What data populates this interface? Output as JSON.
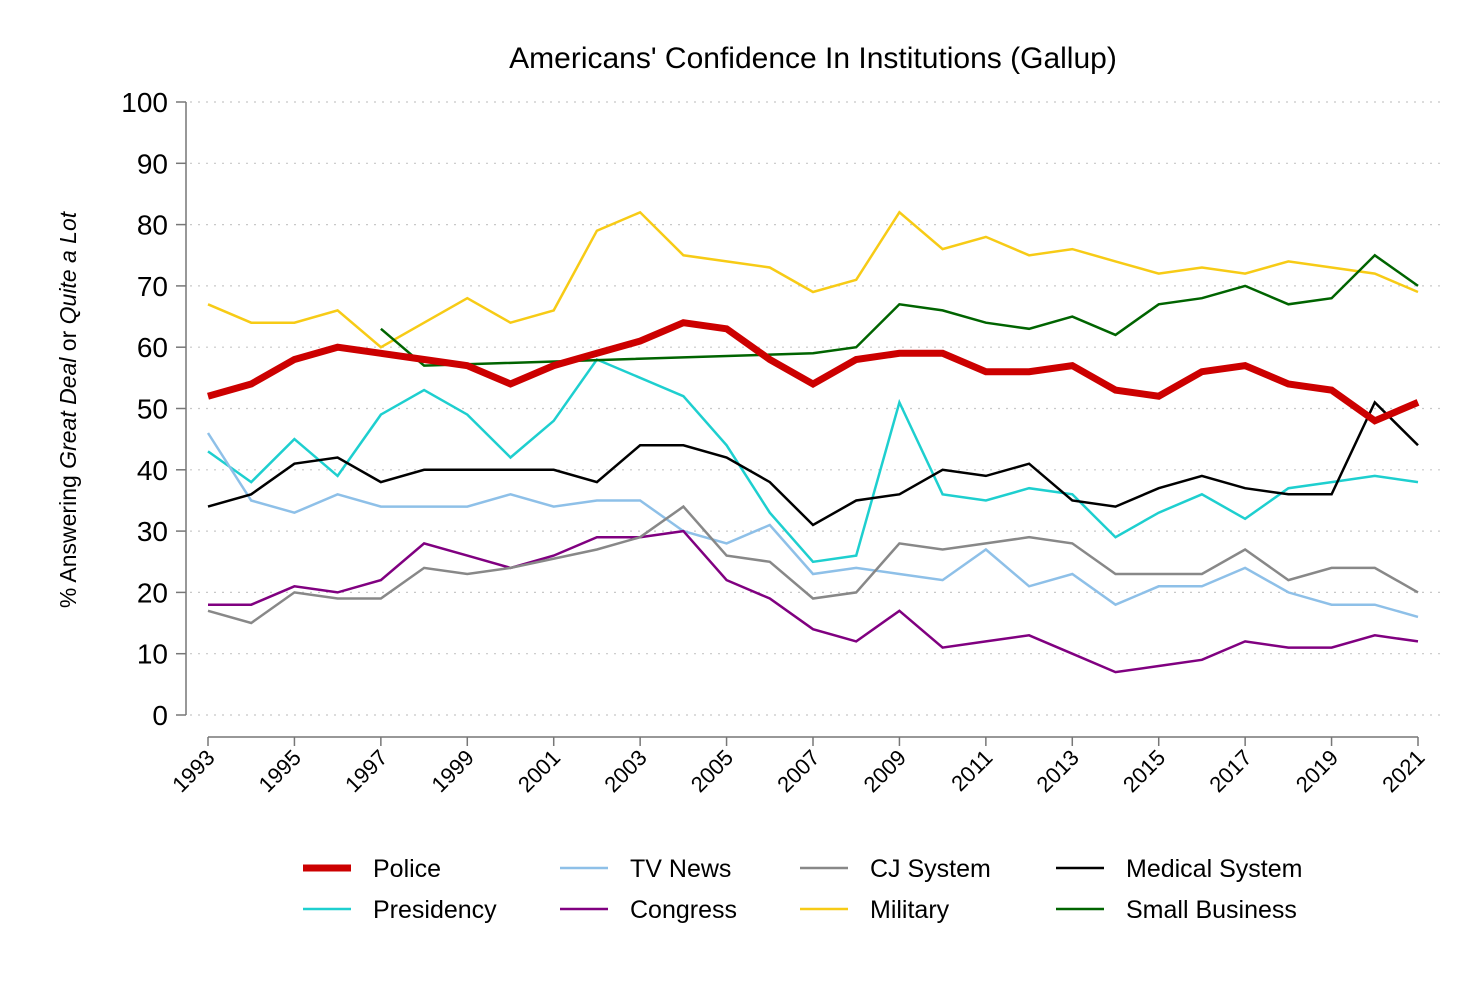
{
  "chart_data": {
    "type": "line",
    "title": "Americans' Confidence In Institutions (Gallup)",
    "ylabel_parts": [
      "% Answering ",
      "Great Deal",
      " or ",
      "Quite a Lot"
    ],
    "ylabel_italic": [
      false,
      true,
      false,
      true
    ],
    "xlabel": "",
    "xlim": [
      1993,
      2021
    ],
    "ylim": [
      0,
      100
    ],
    "yticks": [
      "0",
      "10",
      "20",
      "30",
      "40",
      "50",
      "60",
      "70",
      "80",
      "90",
      "100"
    ],
    "xticks": [
      "1993",
      "1995",
      "1997",
      "1999",
      "2001",
      "2003",
      "2005",
      "2007",
      "2009",
      "2011",
      "2013",
      "2015",
      "2017",
      "2019",
      "2021"
    ],
    "grid": "horizontal dotted",
    "legend_position": "bottom",
    "series": [
      {
        "name": "Police",
        "color": "#cc0000",
        "emphasis": "thick",
        "x": [
          1993,
          1994,
          1995,
          1996,
          1997,
          1998,
          1999,
          2000,
          2001,
          2002,
          2003,
          2004,
          2005,
          2006,
          2007,
          2008,
          2009,
          2010,
          2011,
          2012,
          2013,
          2014,
          2015,
          2016,
          2017,
          2018,
          2019,
          2020,
          2021
        ],
        "y": [
          52,
          54,
          58,
          60,
          59,
          58,
          57,
          54,
          57,
          59,
          61,
          64,
          63,
          58,
          54,
          58,
          59,
          59,
          56,
          56,
          57,
          53,
          52,
          56,
          57,
          54,
          53,
          48,
          51
        ]
      },
      {
        "name": "Presidency",
        "color": "#1ecfcf",
        "emphasis": "normal",
        "x": [
          1993,
          1994,
          1995,
          1996,
          1997,
          1998,
          1999,
          2000,
          2001,
          2002,
          2003,
          2004,
          2005,
          2006,
          2007,
          2008,
          2009,
          2010,
          2011,
          2012,
          2013,
          2014,
          2015,
          2016,
          2017,
          2018,
          2019,
          2020,
          2021
        ],
        "y": [
          43,
          38,
          45,
          39,
          49,
          53,
          49,
          42,
          48,
          58,
          55,
          52,
          44,
          33,
          25,
          26,
          51,
          36,
          35,
          37,
          36,
          29,
          33,
          36,
          32,
          37,
          38,
          39,
          38
        ]
      },
      {
        "name": "TV News",
        "color": "#8ec0e8",
        "emphasis": "normal",
        "x": [
          1993,
          1994,
          1995,
          1996,
          1997,
          1998,
          1999,
          2000,
          2001,
          2002,
          2003,
          2004,
          2005,
          2006,
          2007,
          2008,
          2009,
          2010,
          2011,
          2012,
          2013,
          2014,
          2015,
          2016,
          2017,
          2018,
          2019,
          2020,
          2021
        ],
        "y": [
          46,
          35,
          33,
          36,
          34,
          34,
          34,
          36,
          34,
          35,
          35,
          30,
          28,
          31,
          23,
          24,
          23,
          22,
          27,
          21,
          23,
          18,
          21,
          21,
          24,
          20,
          18,
          18,
          16
        ]
      },
      {
        "name": "Congress",
        "color": "#800080",
        "emphasis": "normal",
        "x": [
          1993,
          1994,
          1995,
          1996,
          1997,
          1998,
          1999,
          2000,
          2001,
          2002,
          2003,
          2004,
          2005,
          2006,
          2007,
          2008,
          2009,
          2010,
          2011,
          2012,
          2013,
          2014,
          2015,
          2016,
          2017,
          2018,
          2019,
          2020,
          2021
        ],
        "y": [
          18,
          18,
          21,
          20,
          22,
          28,
          26,
          24,
          26,
          29,
          29,
          30,
          22,
          19,
          14,
          12,
          17,
          11,
          12,
          13,
          10,
          7,
          8,
          9,
          12,
          11,
          11,
          13,
          12
        ]
      },
      {
        "name": "CJ System",
        "color": "#888888",
        "emphasis": "normal",
        "x": [
          1993,
          1994,
          1995,
          1996,
          1997,
          1998,
          1999,
          2000,
          2002,
          2003,
          2004,
          2005,
          2006,
          2007,
          2008,
          2009,
          2010,
          2011,
          2012,
          2013,
          2014,
          2015,
          2016,
          2017,
          2018,
          2019,
          2020,
          2021
        ],
        "y": [
          17,
          15,
          20,
          19,
          19,
          24,
          23,
          24,
          27,
          29,
          34,
          26,
          25,
          19,
          20,
          28,
          27,
          28,
          29,
          28,
          23,
          23,
          23,
          27,
          22,
          24,
          24,
          20
        ]
      },
      {
        "name": "Military",
        "color": "#f7cb16",
        "emphasis": "normal",
        "x": [
          1993,
          1994,
          1995,
          1996,
          1997,
          1998,
          1999,
          2000,
          2001,
          2002,
          2003,
          2004,
          2005,
          2006,
          2007,
          2008,
          2009,
          2010,
          2011,
          2012,
          2013,
          2014,
          2015,
          2016,
          2017,
          2018,
          2019,
          2020,
          2021
        ],
        "y": [
          67,
          64,
          64,
          66,
          60,
          64,
          68,
          64,
          66,
          79,
          82,
          75,
          74,
          73,
          69,
          71,
          82,
          76,
          78,
          75,
          76,
          74,
          72,
          73,
          72,
          74,
          73,
          72,
          69
        ]
      },
      {
        "name": "Medical System",
        "color": "#000000",
        "emphasis": "normal",
        "x": [
          1993,
          1994,
          1995,
          1996,
          1997,
          1998,
          1999,
          2000,
          2001,
          2002,
          2003,
          2004,
          2005,
          2006,
          2007,
          2008,
          2009,
          2010,
          2011,
          2012,
          2013,
          2014,
          2015,
          2016,
          2017,
          2018,
          2019,
          2020,
          2021
        ],
        "y": [
          34,
          36,
          41,
          42,
          38,
          40,
          40,
          40,
          40,
          38,
          44,
          44,
          42,
          38,
          31,
          35,
          36,
          40,
          39,
          41,
          35,
          34,
          37,
          39,
          37,
          36,
          36,
          51,
          44
        ]
      },
      {
        "name": "Small Business",
        "color": "#006400",
        "emphasis": "normal",
        "x": [
          1997,
          1998,
          2007,
          2008,
          2009,
          2010,
          2011,
          2012,
          2013,
          2014,
          2015,
          2016,
          2017,
          2018,
          2019,
          2020,
          2021
        ],
        "y": [
          63,
          57,
          59,
          60,
          67,
          66,
          64,
          63,
          65,
          62,
          67,
          68,
          70,
          67,
          68,
          75,
          70
        ]
      }
    ]
  }
}
